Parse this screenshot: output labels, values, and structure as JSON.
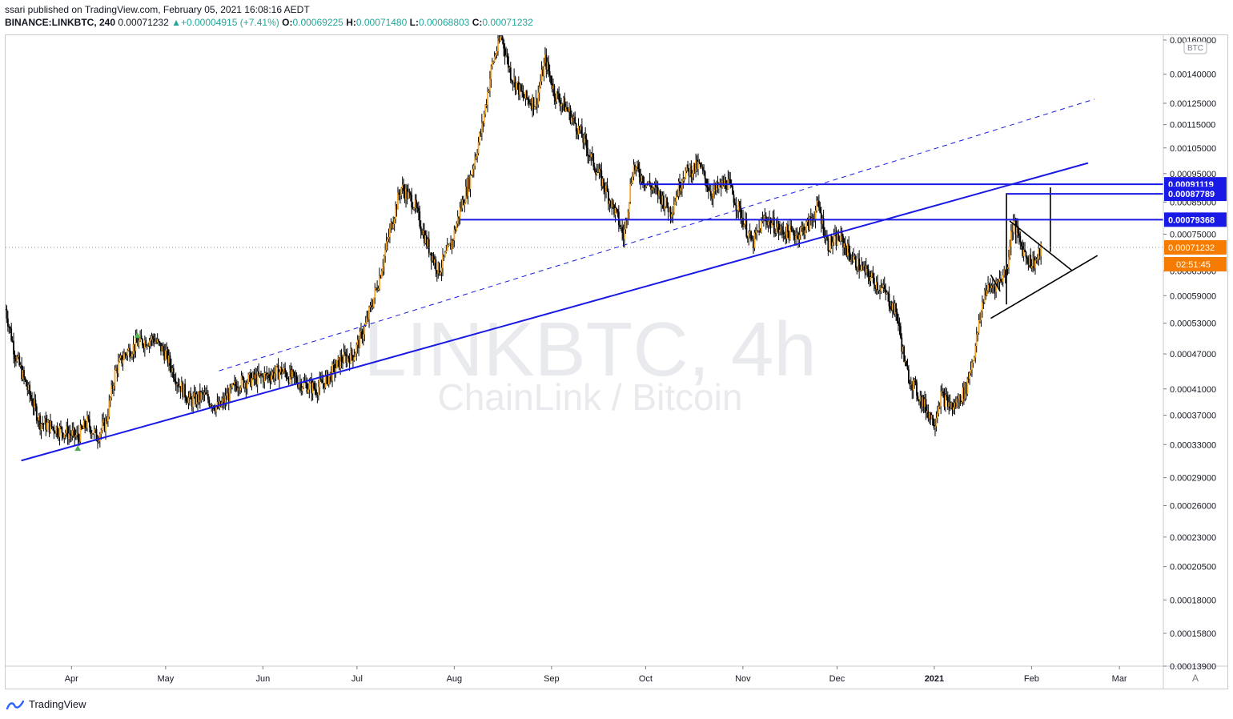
{
  "header": {
    "publisher_line": "ssari published on TradingView.com, February 05, 2021 16:08:16 AEDT",
    "symbol": "BINANCE:LINKBTC, 240",
    "last": "0.00071232",
    "change": "▲+0.00004915 (+7.41%)",
    "o_label": "O:",
    "o_value": "0.00069225",
    "h_label": "H:",
    "h_value": "0.00071480",
    "l_label": "L:",
    "l_value": "0.00068803",
    "c_label": "C:",
    "c_value": "0.00071232"
  },
  "watermark": {
    "ticker": "LINKBTC, 4h",
    "name": "ChainLink / Bitcoin"
  },
  "currency_badge": "BTC",
  "auto_scale_button": "A",
  "footer": {
    "brand": "TradingView"
  },
  "chart_data": {
    "type": "candlestick",
    "y_scale": "log",
    "ylim": [
      0.000139,
      0.00163
    ],
    "x_range": [
      "2020-03-11",
      "2021-03-15"
    ],
    "y_ticks": [
      "0.00160000",
      "0.00140000",
      "0.00125000",
      "0.00115000",
      "0.00105000",
      "0.00095000",
      "0.00085000",
      "0.00075000",
      "0.00065000",
      "0.00059000",
      "0.00053000",
      "0.00047000",
      "0.00041000",
      "0.00037000",
      "0.00033000",
      "0.00029000",
      "0.00026000",
      "0.00023000",
      "0.00020500",
      "0.00018000",
      "0.00015800",
      "0.00013900"
    ],
    "x_ticks": [
      {
        "label": "Apr",
        "date": "2020-04-01"
      },
      {
        "label": "May",
        "date": "2020-05-01"
      },
      {
        "label": "Jun",
        "date": "2020-06-01"
      },
      {
        "label": "Jul",
        "date": "2020-07-01"
      },
      {
        "label": "Aug",
        "date": "2020-08-01"
      },
      {
        "label": "Sep",
        "date": "2020-09-01"
      },
      {
        "label": "Oct",
        "date": "2020-10-01"
      },
      {
        "label": "Nov",
        "date": "2020-11-01"
      },
      {
        "label": "Dec",
        "date": "2020-12-01"
      },
      {
        "label": "2021",
        "date": "2021-01-01",
        "bold": true
      },
      {
        "label": "Feb",
        "date": "2021-02-01"
      },
      {
        "label": "Mar",
        "date": "2021-03-01"
      }
    ],
    "price_path": [
      [
        "2020-03-11",
        0.00056
      ],
      [
        "2020-03-14",
        0.00047
      ],
      [
        "2020-03-18",
        0.00041
      ],
      [
        "2020-03-22",
        0.00036
      ],
      [
        "2020-03-28",
        0.00035
      ],
      [
        "2020-04-03",
        0.00034
      ],
      [
        "2020-04-06",
        0.00036
      ],
      [
        "2020-04-09",
        0.00034
      ],
      [
        "2020-04-12",
        0.00036
      ],
      [
        "2020-04-15",
        0.00044
      ],
      [
        "2020-04-18",
        0.00047
      ],
      [
        "2020-04-22",
        0.00049
      ],
      [
        "2020-04-27",
        0.0005
      ],
      [
        "2020-05-01",
        0.00047
      ],
      [
        "2020-05-05",
        0.00042
      ],
      [
        "2020-05-09",
        0.00039
      ],
      [
        "2020-05-13",
        0.0004
      ],
      [
        "2020-05-18",
        0.00038
      ],
      [
        "2020-05-24",
        0.00042
      ],
      [
        "2020-06-01",
        0.00043
      ],
      [
        "2020-06-07",
        0.00044
      ],
      [
        "2020-06-13",
        0.00042
      ],
      [
        "2020-06-18",
        0.00041
      ],
      [
        "2020-06-22",
        0.00043
      ],
      [
        "2020-06-26",
        0.00046
      ],
      [
        "2020-06-30",
        0.00047
      ],
      [
        "2020-07-04",
        0.00053
      ],
      [
        "2020-07-08",
        0.00063
      ],
      [
        "2020-07-12",
        0.00078
      ],
      [
        "2020-07-15",
        0.0009
      ],
      [
        "2020-07-19",
        0.00085
      ],
      [
        "2020-07-23",
        0.00073
      ],
      [
        "2020-07-27",
        0.00065
      ],
      [
        "2020-07-31",
        0.00072
      ],
      [
        "2020-08-03",
        0.00083
      ],
      [
        "2020-08-06",
        0.00093
      ],
      [
        "2020-08-10",
        0.00115
      ],
      [
        "2020-08-13",
        0.00145
      ],
      [
        "2020-08-16",
        0.00163
      ],
      [
        "2020-08-19",
        0.0014
      ],
      [
        "2020-08-23",
        0.00128
      ],
      [
        "2020-08-27",
        0.00125
      ],
      [
        "2020-08-30",
        0.00148
      ],
      [
        "2020-09-02",
        0.0013
      ],
      [
        "2020-09-06",
        0.00122
      ],
      [
        "2020-09-10",
        0.00112
      ],
      [
        "2020-09-14",
        0.001
      ],
      [
        "2020-09-18",
        0.0009
      ],
      [
        "2020-09-22",
        0.0008
      ],
      [
        "2020-09-24",
        0.00074
      ],
      [
        "2020-09-27",
        0.00098
      ],
      [
        "2020-10-01",
        0.00092
      ],
      [
        "2020-10-05",
        0.00088
      ],
      [
        "2020-10-09",
        0.00082
      ],
      [
        "2020-10-13",
        0.00095
      ],
      [
        "2020-10-18",
        0.00098
      ],
      [
        "2020-10-22",
        0.00088
      ],
      [
        "2020-10-27",
        0.00092
      ],
      [
        "2020-10-31",
        0.00082
      ],
      [
        "2020-11-04",
        0.00072
      ],
      [
        "2020-11-08",
        0.0008
      ],
      [
        "2020-11-13",
        0.00076
      ],
      [
        "2020-11-18",
        0.00075
      ],
      [
        "2020-11-22",
        0.00078
      ],
      [
        "2020-11-25",
        0.00084
      ],
      [
        "2020-11-28",
        0.00072
      ],
      [
        "2020-12-02",
        0.00074
      ],
      [
        "2020-12-06",
        0.00068
      ],
      [
        "2020-12-11",
        0.00064
      ],
      [
        "2020-12-16",
        0.0006
      ],
      [
        "2020-12-20",
        0.00055
      ],
      [
        "2020-12-23",
        0.00044
      ],
      [
        "2020-12-27",
        0.0004
      ],
      [
        "2021-01-01",
        0.00036
      ],
      [
        "2021-01-03",
        0.0004
      ],
      [
        "2021-01-07",
        0.00038
      ],
      [
        "2021-01-11",
        0.00041
      ],
      [
        "2021-01-14",
        0.00048
      ],
      [
        "2021-01-17",
        0.0006
      ],
      [
        "2021-01-21",
        0.00062
      ],
      [
        "2021-01-24",
        0.00065
      ],
      [
        "2021-01-26",
        0.00079
      ],
      [
        "2021-01-29",
        0.00071
      ],
      [
        "2021-02-01",
        0.00067
      ],
      [
        "2021-02-03",
        0.00068
      ],
      [
        "2021-02-04",
        0.00071232
      ]
    ],
    "markers": [
      {
        "date": "2020-04-03",
        "price": 0.000325,
        "shape": "triangle-up",
        "color": "#4caf50"
      },
      {
        "date": "2020-04-22",
        "price": 0.000505,
        "shape": "triangle-up",
        "color": "#4caf50"
      }
    ],
    "drawings": {
      "trendline_main": {
        "from": [
          "2020-03-16",
          0.00031
        ],
        "to": [
          "2021-02-19",
          0.00099
        ],
        "color": "#1a1ae6",
        "width": 2
      },
      "trendline_dashed": {
        "from": [
          "2020-05-18",
          0.00044
        ],
        "to": [
          "2021-02-21",
          0.00127
        ],
        "color": "#1a1ae6",
        "width": 1,
        "dash": true
      },
      "horizontal_levels": [
        {
          "price": 0.00091119,
          "from": "2020-09-29",
          "label": "0.00091119"
        },
        {
          "price": 0.00087789,
          "from": "2021-01-24",
          "label": "0.00087789"
        },
        {
          "price": 0.00079368,
          "from": "2020-08-03",
          "label": "0.00079368"
        }
      ],
      "current_price": {
        "price": 0.00071232,
        "label": "0.00071232",
        "countdown": "02:51:45",
        "color": "#f57c00"
      },
      "triangle_upper": {
        "from": [
          "2021-01-25",
          0.00079
        ],
        "to": [
          "2021-02-14",
          0.00065
        ],
        "color": "#000000"
      },
      "triangle_lower": {
        "from": [
          "2021-01-19",
          0.00054
        ],
        "to": [
          "2021-02-22",
          0.00069
        ],
        "color": "#000000"
      },
      "flag_pole_left": {
        "date": "2021-01-24",
        "from": 0.00057,
        "to": 0.00088,
        "color": "#000000"
      },
      "flag_left": {
        "from": [
          "2021-01-19",
          0.00064
        ],
        "to": [
          "2021-01-22",
          0.0006
        ],
        "color": "#000000"
      },
      "measured_move": {
        "date": "2021-02-07",
        "from": 0.0007,
        "to": 0.0009,
        "color": "#000000"
      }
    }
  }
}
